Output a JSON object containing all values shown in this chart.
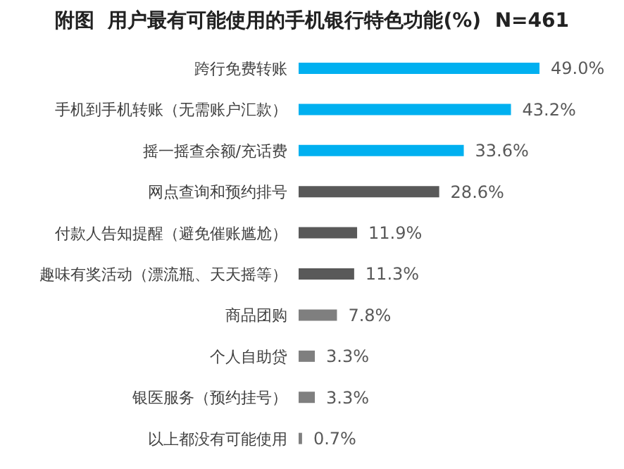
{
  "chart_data": {
    "type": "bar",
    "orientation": "horizontal",
    "title": "附图  用户最有可能使用的手机银行特色功能(%)  N=461",
    "categories": [
      "跨行免费转账",
      "手机到手机转账（无需账户汇款）",
      "摇一摇查余额/充话费",
      "网点查询和预约排号",
      "付款人告知提醒（避免催账尴尬）",
      "趣味有奖活动（漂流瓶、天天摇等）",
      "商品团购",
      "个人自助贷",
      "银医服务（预约挂号）",
      "以上都没有可能使用"
    ],
    "values": [
      49.0,
      43.2,
      33.6,
      28.6,
      11.9,
      11.3,
      7.8,
      3.3,
      3.3,
      0.7
    ],
    "colors": [
      "#00b0f0",
      "#00b0f0",
      "#00b0f0",
      "#595959",
      "#595959",
      "#595959",
      "#7f7f7f",
      "#7f7f7f",
      "#7f7f7f",
      "#7f7f7f"
    ],
    "value_labels": [
      "49.0%",
      "43.2%",
      "33.6%",
      "28.6%",
      "11.9%",
      "11.3%",
      "7.8%",
      "3.3%",
      "3.3%",
      "0.7%"
    ],
    "grid": false,
    "legend": false
  }
}
